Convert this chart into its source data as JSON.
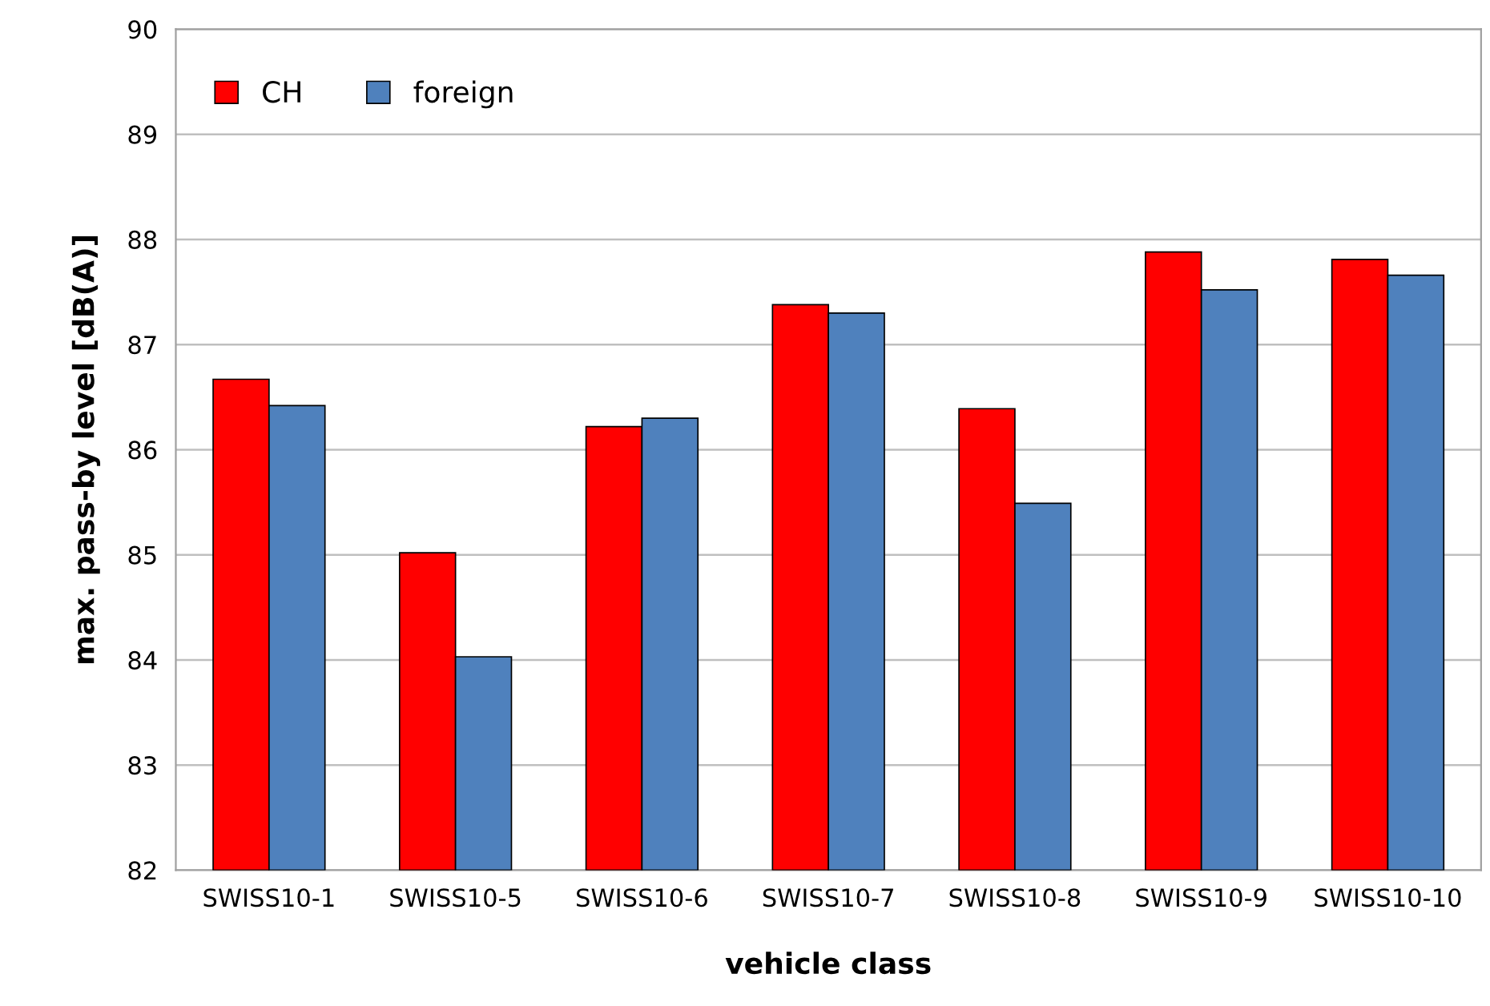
{
  "chart_data": {
    "type": "bar",
    "xlabel": "vehicle class",
    "ylabel": "max. pass-by level [dB(A)]",
    "categories": [
      "SWISS10-1",
      "SWISS10-5",
      "SWISS10-6",
      "SWISS10-7",
      "SWISS10-8",
      "SWISS10-9",
      "SWISS10-10"
    ],
    "series": [
      {
        "name": "CH",
        "color": "#ff0000",
        "values": [
          86.67,
          85.02,
          86.22,
          87.38,
          86.39,
          87.88,
          87.81
        ]
      },
      {
        "name": "foreign",
        "color": "#4f81bd",
        "values": [
          86.42,
          84.03,
          86.3,
          87.3,
          85.49,
          87.52,
          87.66
        ]
      }
    ],
    "ylim": [
      82,
      90
    ],
    "yticks": [
      82,
      83,
      84,
      85,
      86,
      87,
      88,
      89,
      90
    ],
    "grid": "y",
    "legend": "top left"
  }
}
